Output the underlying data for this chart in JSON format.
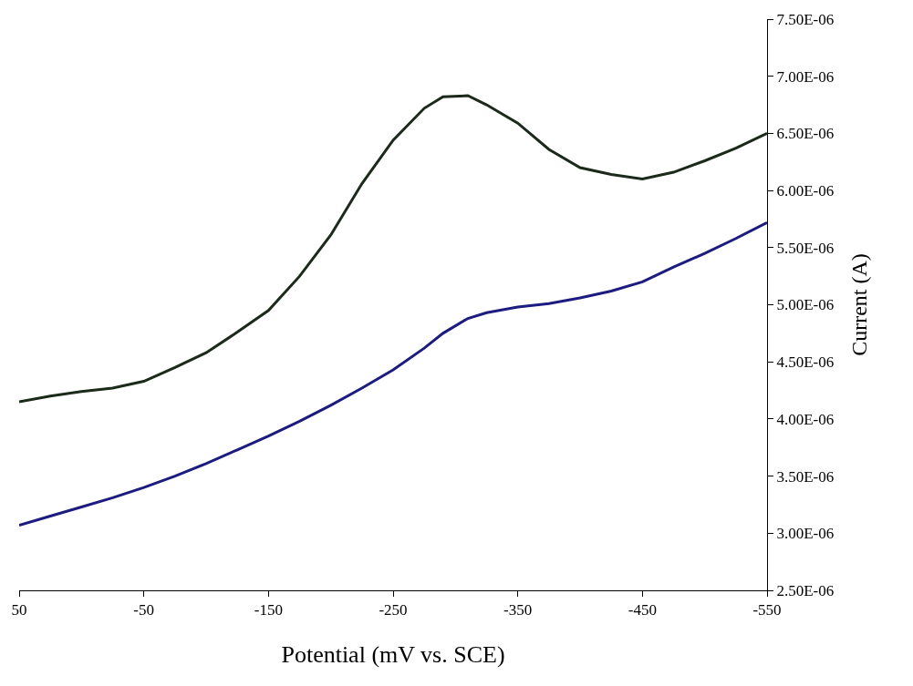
{
  "chart_data": {
    "type": "line",
    "xlabel": "Potential (mV vs. SCE)",
    "ylabel": "Current (A)",
    "x": [
      50,
      25,
      0,
      -25,
      -50,
      -75,
      -100,
      -125,
      -150,
      -175,
      -200,
      -225,
      -250,
      -275,
      -290,
      -310,
      -325,
      -350,
      -375,
      -400,
      -425,
      -450,
      -475,
      -500,
      -525,
      -550
    ],
    "series": [
      {
        "color": "#1b2a1b",
        "values": [
          4.15e-06,
          4.2e-06,
          4.24e-06,
          4.27e-06,
          4.33e-06,
          4.45e-06,
          4.58e-06,
          4.76e-06,
          4.95e-06,
          5.25e-06,
          5.61e-06,
          6.06e-06,
          6.44e-06,
          6.72e-06,
          6.82e-06,
          6.83e-06,
          6.75e-06,
          6.59e-06,
          6.36e-06,
          6.2e-06,
          6.14e-06,
          6.1e-06,
          6.16e-06,
          6.26e-06,
          6.37e-06,
          6.5e-06
        ]
      },
      {
        "color": "#1c1c80",
        "values": [
          3.07e-06,
          3.15e-06,
          3.23e-06,
          3.31e-06,
          3.4e-06,
          3.5e-06,
          3.61e-06,
          3.73e-06,
          3.85e-06,
          3.98e-06,
          4.12e-06,
          4.27e-06,
          4.43e-06,
          4.62e-06,
          4.75e-06,
          4.88e-06,
          4.93e-06,
          4.98e-06,
          5.01e-06,
          5.06e-06,
          5.12e-06,
          5.2e-06,
          5.33e-06,
          5.45e-06,
          5.58e-06,
          5.72e-06
        ]
      }
    ],
    "xlim": [
      50,
      -550
    ],
    "xticks": [
      50,
      -50,
      -150,
      -250,
      -350,
      -450,
      -550
    ],
    "ylim": [
      2.5e-06,
      7.5e-06
    ],
    "yticks": [
      {
        "value": 2.5e-06,
        "label": "2.50E-06"
      },
      {
        "value": 3e-06,
        "label": "3.00E-06"
      },
      {
        "value": 3.5e-06,
        "label": "3.50E-06"
      },
      {
        "value": 4e-06,
        "label": "4.00E-06"
      },
      {
        "value": 4.5e-06,
        "label": "4.50E-06"
      },
      {
        "value": 5e-06,
        "label": "5.00E-06"
      },
      {
        "value": 5.5e-06,
        "label": "5.50E-06"
      },
      {
        "value": 6e-06,
        "label": "6.00E-06"
      },
      {
        "value": 6.5e-06,
        "label": "6.50E-06"
      },
      {
        "value": 7e-06,
        "label": "7.00E-06"
      },
      {
        "value": 7.5e-06,
        "label": "7.50E-06"
      }
    ],
    "marker": "none",
    "line_style": "solid"
  }
}
